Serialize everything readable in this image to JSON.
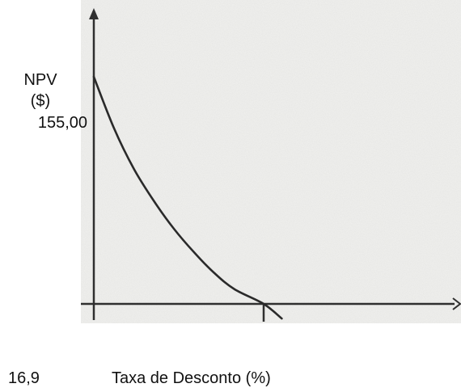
{
  "chart_data": {
    "type": "line",
    "title": "",
    "ylabel": [
      "NPV",
      "($)"
    ],
    "xlabel": "Taxa de Desconto (%)",
    "y_tick_label": "155,00",
    "x_tick_label": "16,9",
    "ylim": [
      -20,
      195
    ],
    "xlim": [
      0,
      25
    ],
    "series": [
      {
        "x": [
          0,
          2,
          4,
          6,
          8,
          10,
          12,
          14,
          16.9,
          18.7
        ],
        "y": [
          155,
          120,
          92,
          70,
          51,
          35,
          21,
          10,
          0,
          -10
        ]
      }
    ],
    "grid": false,
    "legend": "none",
    "colors": {
      "line": "#2a2a2a",
      "axes": "#2f2f2f",
      "background": "#f1f1ef"
    }
  }
}
